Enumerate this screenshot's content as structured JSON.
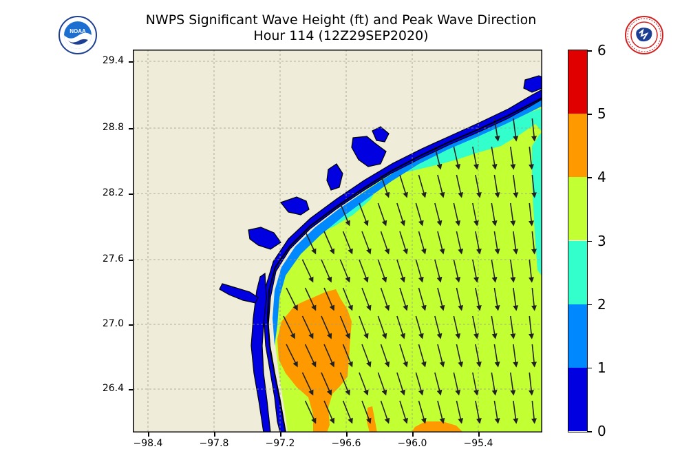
{
  "header": {
    "title_line1": "NWPS Significant Wave Height (ft) and Peak Wave Direction",
    "title_line2": "Hour 114 (12Z29SEP2020)"
  },
  "logos": {
    "left": {
      "icon": "noaa-logo",
      "text": "NOAA"
    },
    "right": {
      "icon": "nws-logo",
      "text": "NATIONAL WEATHER SERVICE"
    }
  },
  "map": {
    "land_color": "#efedda",
    "grid": true,
    "y_ticks": [
      "29.4",
      "28.8",
      "28.2",
      "27.6",
      "27.0",
      "26.4"
    ],
    "x_ticks": [
      "−98.4",
      "−97.8",
      "−97.2",
      "−96.6",
      "−96.0",
      "−95.4"
    ],
    "wave_direction": "north-northwest to south-southeast"
  },
  "colorbar": {
    "ticks": [
      "6",
      "5",
      "4",
      "3",
      "2",
      "1",
      "0"
    ],
    "colors": [
      "#0000e0",
      "#0088ff",
      "#33ffcc",
      "#c2ff33",
      "#ff9900",
      "#e00000"
    ]
  }
}
